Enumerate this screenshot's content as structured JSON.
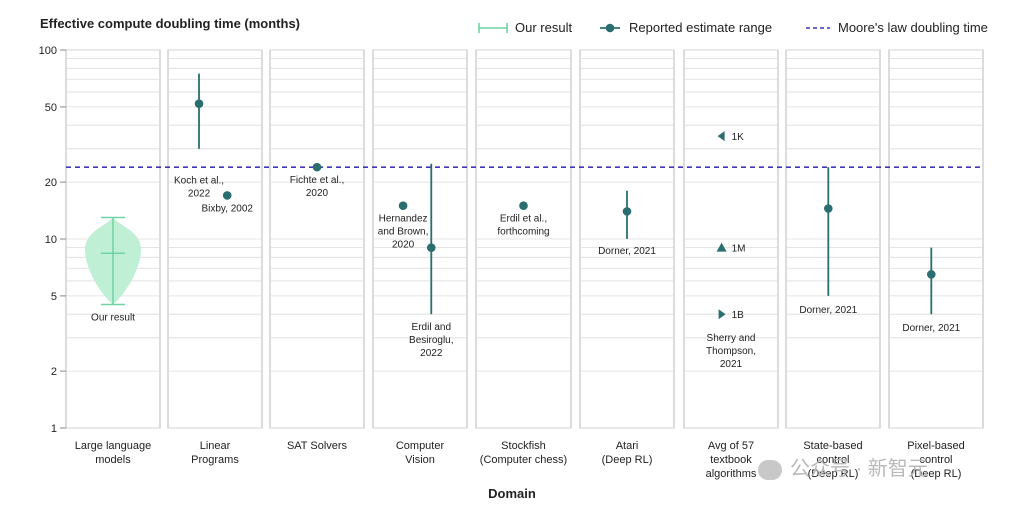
{
  "chart_data": {
    "type": "scatter",
    "ylabel": "Effective compute doubling time (months)",
    "xlabel": "Domain",
    "y_scale": "log",
    "ylim": [
      1,
      100
    ],
    "y_ticks": [
      "100",
      "50",
      "20",
      "10",
      "5",
      "2",
      "1"
    ],
    "y_tick_values": [
      100,
      50,
      20,
      10,
      5,
      2,
      1
    ],
    "grid": true,
    "legend_position": "top-right",
    "legend": {
      "our_result": "Our result",
      "reported": "Reported estimate range",
      "moore": "Moore's law doubling time"
    },
    "moores_law_months": 24,
    "colors": {
      "teal": "#2a6e70",
      "green": "#6fd3a3",
      "green_fill": "#bff0d6",
      "moore": "#3f37b5",
      "panel_border": "#b8b8b8",
      "grid": "#dcdcdc"
    },
    "categories": [
      "Large language\nmodels",
      "Linear\nPrograms",
      "SAT Solvers",
      "Computer\nVision",
      "Stockfish\n(Computer chess)",
      "Atari\n(Deep RL)",
      "Avg of 57\ntextbook\nalgorithms",
      "State-based\ncontrol\n(Deep RL)",
      "Pixel-based\ncontrol\n(Deep RL)"
    ],
    "our_result": {
      "domain": 0,
      "low": 4.5,
      "high": 13,
      "median": 8.4,
      "label": "Our result"
    },
    "estimates": [
      {
        "domain": 1,
        "x": 0.33,
        "value": 52,
        "low": 30,
        "high": 75,
        "label": "Koch et al.,\n2022",
        "label_pos": "below-left"
      },
      {
        "domain": 1,
        "x": 0.63,
        "value": 17,
        "label": "Bixby, 2002",
        "label_pos": "below"
      },
      {
        "domain": 2,
        "x": 0.5,
        "value": 24,
        "label": "Fichte et al.,\n2020",
        "label_pos": "below"
      },
      {
        "domain": 3,
        "x": 0.32,
        "value": 15,
        "label": "Hernandez\nand Brown,\n2020",
        "label_pos": "below"
      },
      {
        "domain": 3,
        "x": 0.62,
        "value": 9,
        "low": 4,
        "high": 25,
        "label": "Erdil and\nBesiroglu,\n2022",
        "label_pos": "below"
      },
      {
        "domain": 4,
        "x": 0.5,
        "value": 15,
        "label": "Erdil et al.,\nforthcoming",
        "label_pos": "below"
      },
      {
        "domain": 5,
        "x": 0.5,
        "value": 14,
        "low": 10,
        "high": 18,
        "label": "Dorner, 2021",
        "label_pos": "below"
      },
      {
        "domain": 7,
        "x": 0.45,
        "value": 14.5,
        "low": 5,
        "high": 24,
        "label": "Dorner, 2021",
        "label_pos": "below"
      },
      {
        "domain": 8,
        "x": 0.45,
        "value": 6.5,
        "low": 4,
        "high": 9,
        "label": "Dorner, 2021",
        "label_pos": "below"
      }
    ],
    "textbook_markers": [
      {
        "domain": 6,
        "x": 0.4,
        "value": 35,
        "shape": "triangle-left",
        "label": "1K"
      },
      {
        "domain": 6,
        "x": 0.4,
        "value": 9,
        "shape": "triangle-up",
        "label": "1M"
      },
      {
        "domain": 6,
        "x": 0.4,
        "value": 4,
        "shape": "triangle-right",
        "label": "1B"
      }
    ],
    "textbook_source": {
      "domain": 6,
      "value": 3.1,
      "label": "Sherry and\nThompson,\n2021"
    }
  },
  "watermark": "公众号 · 新智元"
}
